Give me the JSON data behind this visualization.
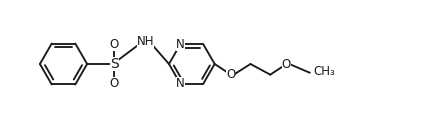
{
  "bg_color": "#ffffff",
  "line_color": "#1a1a1a",
  "line_width": 1.35,
  "font_size": 8.5,
  "figsize": [
    4.24,
    1.28
  ],
  "dpi": 100,
  "xlim": [
    -0.3,
    10.8
  ],
  "ylim": [
    0.0,
    3.0
  ]
}
